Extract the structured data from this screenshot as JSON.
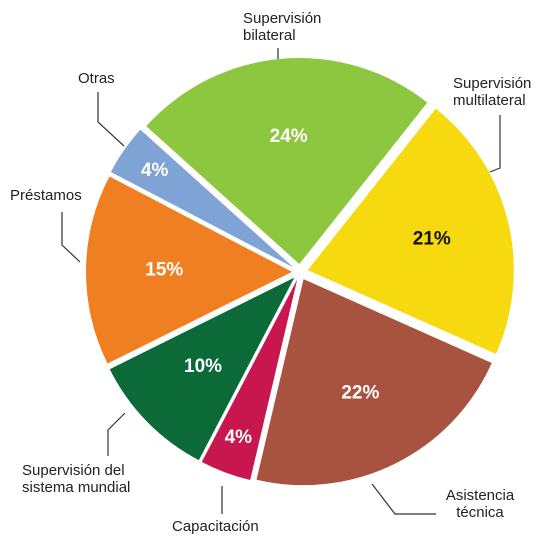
{
  "chart_data": {
    "type": "pie",
    "categories": [
      "Supervisión bilateral",
      "Supervisión multilateral",
      "Asistencia técnica",
      "Capacitación",
      "Supervisión del sistema mundial",
      "Préstamos",
      "Otras"
    ],
    "values": [
      24,
      21,
      22,
      4,
      10,
      15,
      4
    ],
    "value_labels": [
      "24%",
      "21%",
      "22%",
      "4%",
      "10%",
      "15%",
      "4%"
    ],
    "colors": [
      "#8dc63f",
      "#f6d90f",
      "#a8533f",
      "#c8174f",
      "#0b6a38",
      "#f07f22",
      "#7fa3d4"
    ]
  }
}
